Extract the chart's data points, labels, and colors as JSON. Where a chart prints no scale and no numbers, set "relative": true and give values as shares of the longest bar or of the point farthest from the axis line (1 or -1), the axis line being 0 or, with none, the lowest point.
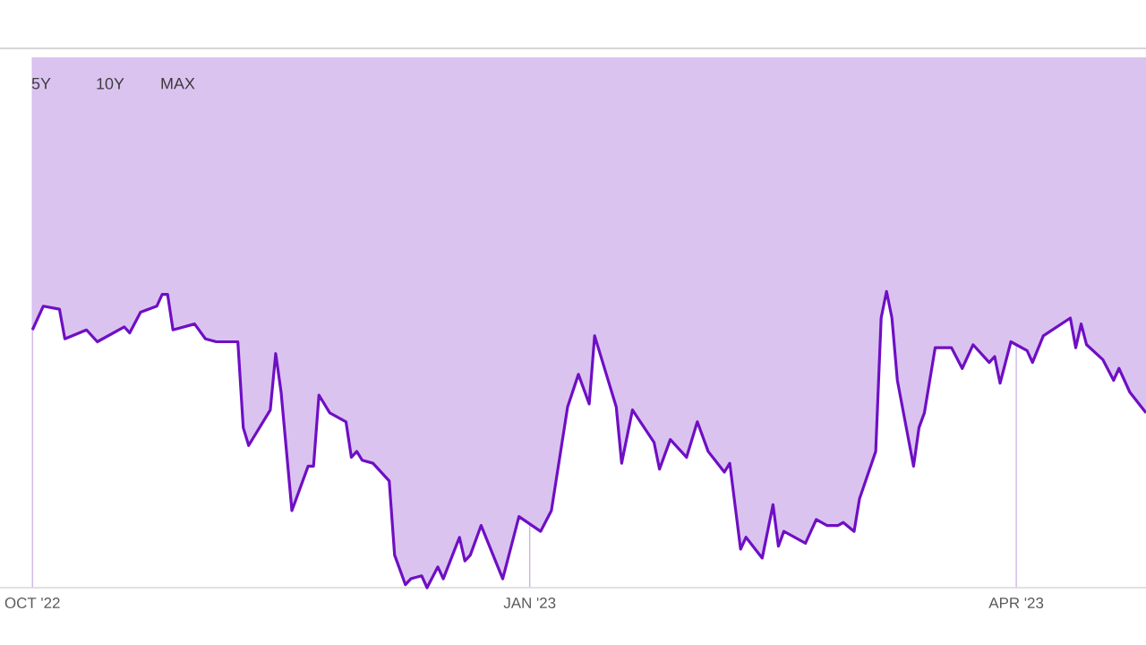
{
  "chart_data": {
    "type": "area",
    "relative": true,
    "grid": "x",
    "color": "#6f0fc4",
    "annotations": [
      "5Y",
      "10Y",
      "MAX"
    ],
    "xlim": [
      "2022-09-25",
      "2023-04-25"
    ],
    "xticks": [
      {
        "value": "2022-10-01",
        "label": "OCT '22"
      },
      {
        "value": "2023-01-01",
        "label": "JAN '23"
      },
      {
        "value": "2023-04-01",
        "label": "APR '23"
      }
    ],
    "x": [
      "2022-10-01",
      "2022-10-03",
      "2022-10-06",
      "2022-10-07",
      "2022-10-11",
      "2022-10-13",
      "2022-10-18",
      "2022-10-19",
      "2022-10-21",
      "2022-10-24",
      "2022-10-25",
      "2022-10-26",
      "2022-10-27",
      "2022-10-31",
      "2022-11-02",
      "2022-11-04",
      "2022-11-08",
      "2022-11-09",
      "2022-11-10",
      "2022-11-14",
      "2022-11-15",
      "2022-11-16",
      "2022-11-18",
      "2022-11-21",
      "2022-11-22",
      "2022-11-23",
      "2022-11-25",
      "2022-11-28",
      "2022-11-29",
      "2022-11-30",
      "2022-12-01",
      "2022-12-03",
      "2022-12-06",
      "2022-12-07",
      "2022-12-09",
      "2022-12-10",
      "2022-12-12",
      "2022-12-13",
      "2022-12-15",
      "2022-12-16",
      "2022-12-19",
      "2022-12-20",
      "2022-12-21",
      "2022-12-23",
      "2022-12-27",
      "2022-12-30",
      "2023-01-03",
      "2023-01-05",
      "2023-01-08",
      "2023-01-10",
      "2023-01-12",
      "2023-01-13",
      "2023-01-17",
      "2023-01-18",
      "2023-01-20",
      "2023-01-24",
      "2023-01-25",
      "2023-01-27",
      "2023-01-30",
      "2023-02-01",
      "2023-02-03",
      "2023-02-06",
      "2023-02-07",
      "2023-02-09",
      "2023-02-10",
      "2023-02-13",
      "2023-02-15",
      "2023-02-16",
      "2023-02-17",
      "2023-02-21",
      "2023-02-23",
      "2023-02-25",
      "2023-02-27",
      "2023-02-28",
      "2023-03-02",
      "2023-03-03",
      "2023-03-06",
      "2023-03-07",
      "2023-03-08",
      "2023-03-09",
      "2023-03-10",
      "2023-03-13",
      "2023-03-14",
      "2023-03-15",
      "2023-03-17",
      "2023-03-20",
      "2023-03-22",
      "2023-03-24",
      "2023-03-27",
      "2023-03-28",
      "2023-03-29",
      "2023-03-31",
      "2023-04-03",
      "2023-04-04",
      "2023-04-06",
      "2023-04-11",
      "2023-04-12",
      "2023-04-13",
      "2023-04-14",
      "2023-04-17",
      "2023-04-19",
      "2023-04-20",
      "2023-04-22",
      "2023-04-25"
    ],
    "values": [
      0.87,
      0.95,
      0.94,
      0.84,
      0.87,
      0.83,
      0.88,
      0.86,
      0.93,
      0.95,
      0.99,
      0.99,
      0.87,
      0.89,
      0.84,
      0.83,
      0.83,
      0.54,
      0.48,
      0.6,
      0.79,
      0.66,
      0.26,
      0.41,
      0.41,
      0.65,
      0.59,
      0.56,
      0.44,
      0.46,
      0.43,
      0.42,
      0.36,
      0.11,
      0.01,
      0.03,
      0.04,
      0,
      0.07,
      0.03,
      0.17,
      0.09,
      0.11,
      0.21,
      0.03,
      0.24,
      0.19,
      0.26,
      0.61,
      0.72,
      0.62,
      0.85,
      0.61,
      0.42,
      0.6,
      0.49,
      0.4,
      0.5,
      0.44,
      0.56,
      0.46,
      0.39,
      0.42,
      0.13,
      0.17,
      0.1,
      0.28,
      0.14,
      0.19,
      0.15,
      0.23,
      0.21,
      0.21,
      0.22,
      0.19,
      0.3,
      0.46,
      0.91,
      1,
      0.91,
      0.7,
      0.41,
      0.54,
      0.59,
      0.81,
      0.81,
      0.74,
      0.82,
      0.76,
      0.78,
      0.69,
      0.83,
      0.8,
      0.76,
      0.85,
      0.91,
      0.81,
      0.89,
      0.82,
      0.77,
      0.7,
      0.74,
      0.66,
      0.59
    ]
  }
}
